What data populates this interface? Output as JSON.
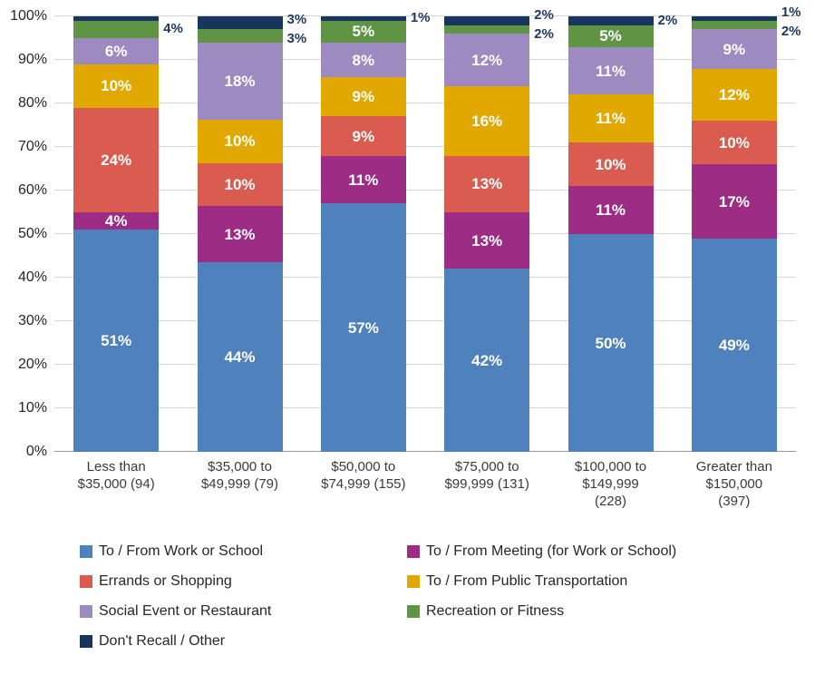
{
  "chart_data": {
    "type": "bar",
    "stacked": true,
    "percent_stacked": true,
    "title": "",
    "ylim": [
      0,
      100
    ],
    "ytick_labels": [
      "0%",
      "10%",
      "20%",
      "30%",
      "40%",
      "50%",
      "60%",
      "70%",
      "80%",
      "90%",
      "100%"
    ],
    "grid": true,
    "legend_position": "bottom",
    "value_suffix": "%",
    "categories": [
      "Less than\n$35,000 (94)",
      "$35,000 to\n$49,999 (79)",
      "$50,000 to\n$74,999 (155)",
      "$75,000 to\n$99,999 (131)",
      "$100,000 to\n$149,999\n(228)",
      "Greater than\n$150,000\n(397)"
    ],
    "series": [
      {
        "name": "To / From Work or School",
        "color": "#4F81BD",
        "values": [
          51,
          44,
          57,
          42,
          50,
          49
        ],
        "label_pos": [
          "inside",
          "inside",
          "inside",
          "inside",
          "inside",
          "inside"
        ]
      },
      {
        "name": "To / From Meeting (for Work or School)",
        "color": "#9C2C84",
        "values": [
          4,
          13,
          11,
          13,
          11,
          17
        ],
        "label_pos": [
          "inside",
          "inside",
          "inside",
          "inside",
          "inside",
          "inside"
        ]
      },
      {
        "name": "Errands or Shopping",
        "color": "#DA5C50",
        "values": [
          24,
          10,
          9,
          13,
          10,
          10
        ],
        "label_pos": [
          "inside",
          "inside",
          "inside",
          "inside",
          "inside",
          "inside"
        ]
      },
      {
        "name": "To / From Public Transportation",
        "color": "#E0A800",
        "values": [
          10,
          10,
          9,
          16,
          11,
          12
        ],
        "label_pos": [
          "inside",
          "inside",
          "inside",
          "inside",
          "inside",
          "inside"
        ]
      },
      {
        "name": "Social Event or Restaurant",
        "color": "#9D8AC1",
        "values": [
          6,
          18,
          8,
          12,
          11,
          9
        ],
        "label_pos": [
          "inside",
          "inside",
          "inside",
          "inside",
          "inside",
          "inside"
        ]
      },
      {
        "name": "Recreation or Fitness",
        "color": "#5E9444",
        "values": [
          4,
          3,
          5,
          2,
          5,
          2
        ],
        "label_pos": [
          "outside",
          "outside",
          "inside",
          "outside",
          "inside",
          "outside"
        ]
      },
      {
        "name": "Don't Recall / Other",
        "color": "#16365C",
        "values": [
          1,
          3,
          1,
          2,
          2,
          1
        ],
        "label_pos": [
          "none",
          "outside",
          "outside",
          "outside",
          "outside",
          "outside"
        ]
      }
    ],
    "inside_label_color": "#FFFFFF",
    "outside_label_color": "#1F3864"
  }
}
